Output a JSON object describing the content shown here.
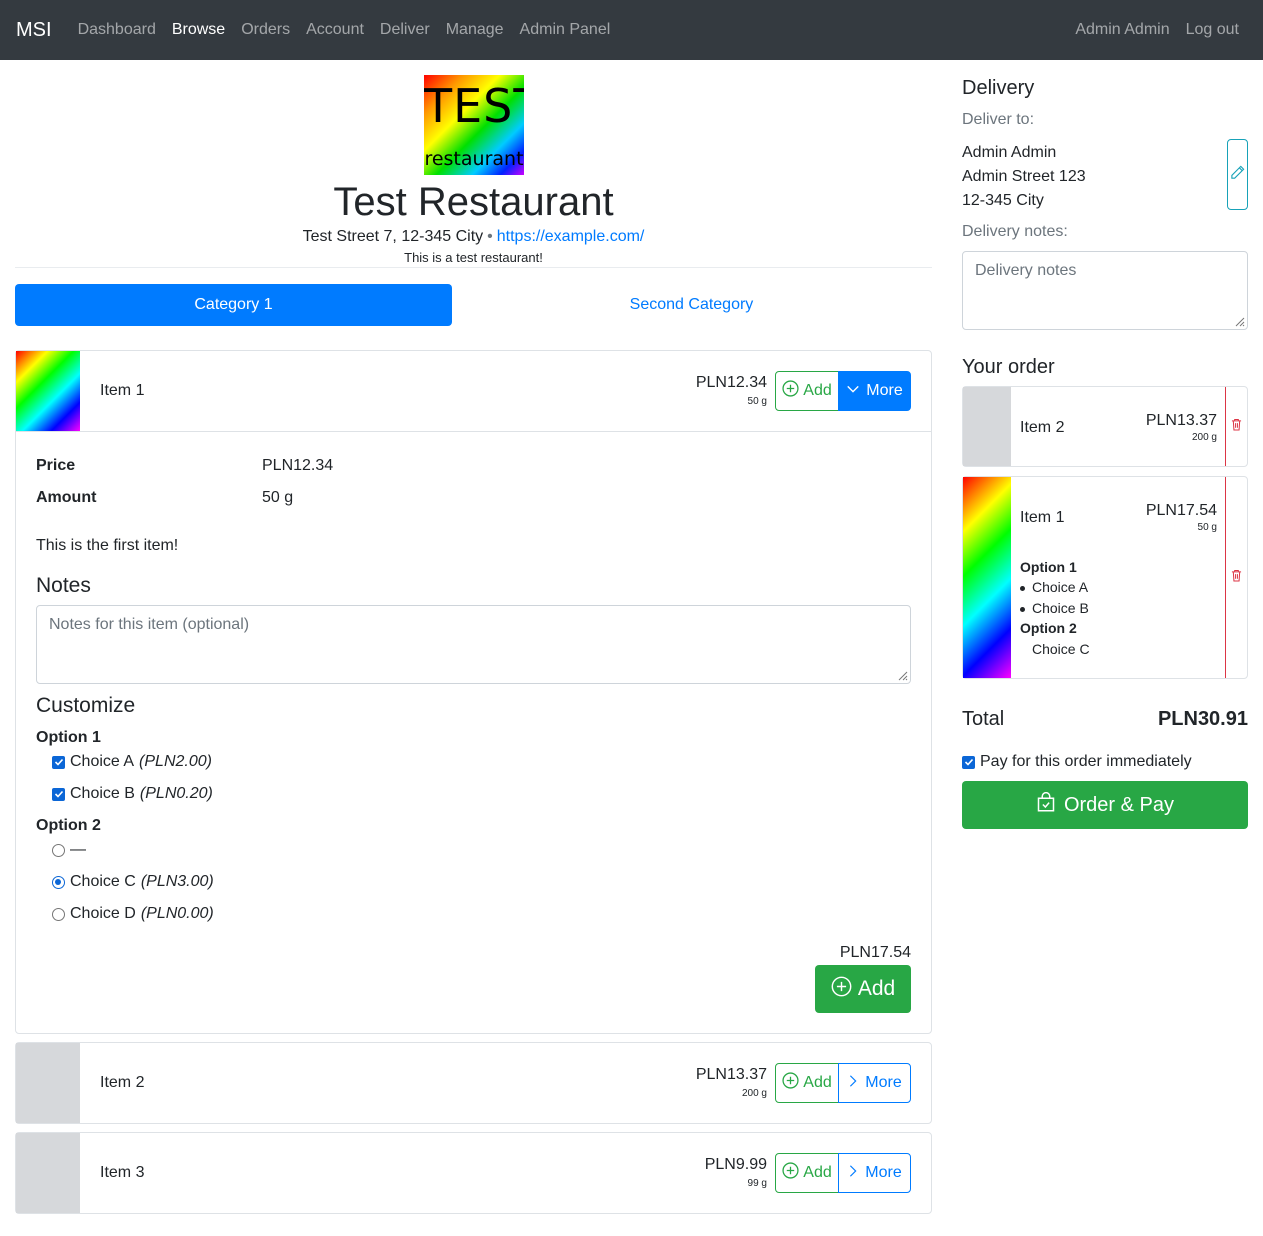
{
  "nav": {
    "brand": "MSI",
    "links": [
      "Dashboard",
      "Browse",
      "Orders",
      "Account",
      "Deliver",
      "Manage",
      "Admin Panel"
    ],
    "active": "Browse",
    "user": "Admin Admin",
    "logout": "Log out"
  },
  "restaurant": {
    "logo_line1": "TEST",
    "logo_line2": "restaurant",
    "name": "Test Restaurant",
    "address": "Test Street 7, 12-345 City",
    "separator": "•",
    "url": "https://example.com/",
    "description": "This is a test restaurant!"
  },
  "tabs": [
    {
      "label": "Category 1",
      "active": true
    },
    {
      "label": "Second Category",
      "active": false
    }
  ],
  "items": [
    {
      "name": "Item 1",
      "price": "PLN12.34",
      "amount": "50 g",
      "add_label": "Add",
      "more_label": "More",
      "expanded": true
    },
    {
      "name": "Item 2",
      "price": "PLN13.37",
      "amount": "200 g",
      "add_label": "Add",
      "more_label": "More",
      "expanded": false
    },
    {
      "name": "Item 3",
      "price": "PLN9.99",
      "amount": "99 g",
      "add_label": "Add",
      "more_label": "More",
      "expanded": false
    }
  ],
  "details": {
    "price_label": "Price",
    "price_value": "PLN12.34",
    "amount_label": "Amount",
    "amount_value": "50 g",
    "description": "This is the first item!",
    "notes_heading": "Notes",
    "notes_placeholder": "Notes for this item (optional)",
    "customize_heading": "Customize",
    "option1": {
      "title": "Option 1",
      "choices": [
        {
          "label": "Choice A",
          "price": "(PLN2.00)",
          "checked": true
        },
        {
          "label": "Choice B",
          "price": "(PLN0.20)",
          "checked": true
        }
      ]
    },
    "option2": {
      "title": "Option 2",
      "choices": [
        {
          "label": "—",
          "price": "",
          "checked": false
        },
        {
          "label": "Choice C",
          "price": "(PLN3.00)",
          "checked": true
        },
        {
          "label": "Choice D",
          "price": "(PLN0.00)",
          "checked": false
        }
      ]
    },
    "total": "PLN17.54",
    "add_label": "Add"
  },
  "delivery": {
    "heading": "Delivery",
    "deliver_to_label": "Deliver to:",
    "name": "Admin Admin",
    "street": "Admin Street 123",
    "city": "12-345 City",
    "notes_label": "Delivery notes:",
    "notes_placeholder": "Delivery notes"
  },
  "order": {
    "heading": "Your order",
    "items": [
      {
        "name": "Item 2",
        "price": "PLN13.37",
        "amount": "200 g"
      },
      {
        "name": "Item 1",
        "price": "PLN17.54",
        "amount": "50 g",
        "opt1_title": "Option 1",
        "opt1_choices": [
          "Choice A",
          "Choice B"
        ],
        "opt2_title": "Option 2",
        "opt2_choice": "Choice C"
      }
    ],
    "total_label": "Total",
    "total_value": "PLN30.91",
    "pay_now_label": "Pay for this order immediately",
    "pay_now_checked": true,
    "order_button": "Order & Pay"
  },
  "colors": {
    "navbar": "#343a40",
    "primary": "#007bff",
    "success": "#28a745",
    "danger": "#dc3545",
    "info": "#17a2b8"
  },
  "icons": [
    "plus-circle-icon",
    "chevron-down-icon",
    "chevron-right-icon",
    "pencil-icon",
    "trash-icon",
    "shopping-bag-icon"
  ]
}
